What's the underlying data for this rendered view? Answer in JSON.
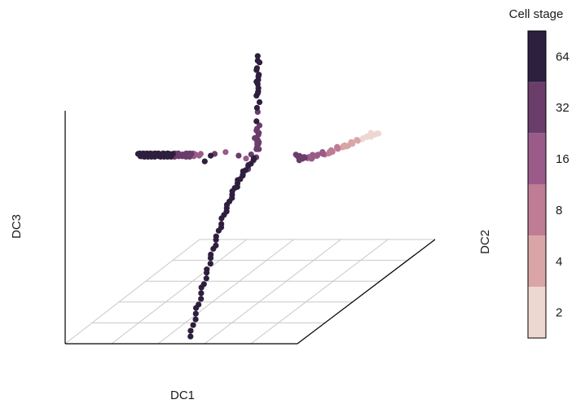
{
  "chart_data": {
    "type": "scatter",
    "projection": "3d",
    "xlabel": "DC1",
    "ylabel": "DC2",
    "zlabel": "DC3",
    "grid": true,
    "legend": {
      "title": "Cell stage",
      "placement": "right",
      "type": "colorbar",
      "ticks": [
        2,
        4,
        8,
        16,
        32,
        64
      ],
      "colors": [
        "#efd7d1",
        "#d9a5a6",
        "#bf7c95",
        "#9a5b8a",
        "#6a3d6b",
        "#2e1f3f"
      ]
    },
    "series": [
      {
        "arm": "stage-axis",
        "cell_stage": [
          2,
          2,
          2,
          2,
          2,
          2,
          2,
          2,
          2,
          2,
          4,
          4,
          4,
          4,
          4,
          4,
          4,
          4,
          4,
          4,
          4,
          4,
          8,
          8,
          8,
          8,
          8,
          8,
          8,
          8,
          8,
          8,
          16,
          16,
          16,
          16,
          16,
          16,
          16,
          16,
          16,
          16,
          16,
          16,
          32,
          32,
          32,
          32,
          32,
          32,
          32,
          32
        ],
        "x": [
          0.98,
          0.95,
          0.92,
          0.97,
          0.9,
          0.88,
          0.94,
          0.86,
          0.84,
          0.91,
          0.82,
          0.8,
          0.78,
          0.76,
          0.79,
          0.74,
          0.72,
          0.75,
          0.7,
          0.68,
          0.73,
          0.71,
          0.66,
          0.64,
          0.62,
          0.6,
          0.63,
          0.58,
          0.56,
          0.59,
          0.61,
          0.57,
          0.54,
          0.52,
          0.5,
          0.48,
          0.51,
          0.46,
          0.44,
          0.47,
          0.42,
          0.4,
          0.45,
          0.43,
          0.38,
          0.36,
          0.34,
          0.37,
          0.33,
          0.35,
          0.31,
          0.32
        ],
        "y": [
          0.22,
          0.24,
          0.23,
          0.26,
          0.21,
          0.25,
          0.2,
          0.22,
          0.24,
          0.19,
          0.21,
          0.23,
          0.2,
          0.22,
          0.18,
          0.21,
          0.19,
          0.23,
          0.2,
          0.22,
          0.17,
          0.24,
          0.19,
          0.21,
          0.18,
          0.2,
          0.23,
          0.19,
          0.17,
          0.21,
          0.16,
          0.22,
          0.18,
          0.2,
          0.17,
          0.19,
          0.22,
          0.16,
          0.18,
          0.2,
          0.17,
          0.19,
          0.15,
          0.21,
          0.17,
          0.18,
          0.16,
          0.2,
          0.19,
          0.15,
          0.17,
          0.18
        ],
        "z": [
          0.63,
          0.62,
          0.63,
          0.62,
          0.62,
          0.61,
          0.62,
          0.61,
          0.6,
          0.62,
          0.6,
          0.6,
          0.59,
          0.59,
          0.6,
          0.58,
          0.58,
          0.59,
          0.58,
          0.57,
          0.59,
          0.57,
          0.57,
          0.57,
          0.56,
          0.56,
          0.57,
          0.55,
          0.55,
          0.56,
          0.56,
          0.55,
          0.55,
          0.55,
          0.55,
          0.54,
          0.55,
          0.54,
          0.53,
          0.54,
          0.54,
          0.53,
          0.54,
          0.54,
          0.54,
          0.53,
          0.54,
          0.53,
          0.54,
          0.53,
          0.55,
          0.54
        ]
      },
      {
        "arm": "left-arm",
        "cell_stage": [
          64,
          64,
          64,
          64,
          64,
          64,
          64,
          64,
          64,
          64,
          64,
          64,
          64,
          64,
          64,
          64,
          64,
          64,
          64,
          64,
          64,
          64,
          64,
          64,
          64,
          64,
          64,
          64,
          64,
          64,
          64,
          64,
          64,
          64,
          64,
          64,
          64,
          64,
          64,
          64,
          32,
          32,
          32,
          32,
          32,
          32,
          32,
          32,
          32,
          32,
          32,
          32,
          32,
          32,
          32,
          32,
          16,
          16,
          16,
          16,
          16,
          64,
          64,
          32,
          16,
          32,
          16,
          32
        ],
        "x": [
          -0.98,
          -0.97,
          -0.96,
          -0.95,
          -0.94,
          -0.93,
          -0.92,
          -0.91,
          -0.9,
          -0.89,
          -0.88,
          -0.87,
          -0.86,
          -0.85,
          -0.84,
          -0.83,
          -0.82,
          -0.81,
          -0.8,
          -0.79,
          -0.96,
          -0.94,
          -0.92,
          -0.9,
          -0.88,
          -0.86,
          -0.84,
          -0.82,
          -0.8,
          -0.78,
          -0.77,
          -0.76,
          -0.75,
          -0.74,
          -0.73,
          -0.72,
          -0.71,
          -0.7,
          -0.69,
          -0.68,
          -0.67,
          -0.66,
          -0.65,
          -0.64,
          -0.63,
          -0.62,
          -0.61,
          -0.6,
          -0.59,
          -0.58,
          -0.57,
          -0.56,
          -0.55,
          -0.54,
          -0.53,
          -0.52,
          -0.51,
          -0.5,
          -0.48,
          -0.46,
          -0.44,
          -0.4,
          -0.36,
          -0.32,
          -0.22,
          -0.12,
          -0.05,
          0.0
        ],
        "y": [
          0.05,
          0.06,
          0.04,
          0.05,
          0.06,
          0.05,
          0.04,
          0.06,
          0.05,
          0.04,
          0.06,
          0.05,
          0.04,
          0.05,
          0.06,
          0.04,
          0.05,
          0.06,
          0.05,
          0.04,
          0.05,
          0.06,
          0.04,
          0.05,
          0.06,
          0.04,
          0.05,
          0.06,
          0.05,
          0.04,
          0.06,
          0.05,
          0.04,
          0.05,
          0.06,
          0.04,
          0.05,
          0.06,
          0.04,
          0.05,
          0.06,
          0.04,
          0.05,
          0.06,
          0.05,
          0.04,
          0.06,
          0.05,
          0.04,
          0.05,
          0.06,
          0.04,
          0.05,
          0.06,
          0.04,
          0.05,
          0.06,
          0.05,
          0.04,
          0.06,
          0.05,
          0.04,
          0.06,
          0.05,
          0.04,
          0.06,
          0.05,
          0.04
        ],
        "z": [
          0.58,
          0.58,
          0.58,
          0.57,
          0.58,
          0.58,
          0.57,
          0.58,
          0.58,
          0.57,
          0.58,
          0.58,
          0.57,
          0.58,
          0.58,
          0.57,
          0.58,
          0.58,
          0.57,
          0.58,
          0.57,
          0.57,
          0.58,
          0.57,
          0.57,
          0.58,
          0.57,
          0.57,
          0.58,
          0.57,
          0.58,
          0.58,
          0.57,
          0.58,
          0.58,
          0.57,
          0.58,
          0.57,
          0.57,
          0.58,
          0.58,
          0.57,
          0.58,
          0.58,
          0.57,
          0.58,
          0.57,
          0.57,
          0.58,
          0.57,
          0.58,
          0.57,
          0.58,
          0.58,
          0.57,
          0.58,
          0.58,
          0.57,
          0.58,
          0.57,
          0.58,
          0.55,
          0.57,
          0.58,
          0.59,
          0.57,
          0.56,
          0.58
        ]
      },
      {
        "arm": "upper-arm",
        "cell_stage": [
          64,
          64,
          64,
          64,
          64,
          64,
          64,
          64,
          64,
          64,
          64,
          64,
          64,
          64,
          64,
          64,
          32,
          64,
          32,
          32,
          32,
          32,
          32,
          32,
          32,
          32,
          32,
          32,
          32,
          32,
          32,
          32
        ],
        "x": [
          0.05,
          0.05,
          0.06,
          0.05,
          0.04,
          0.06,
          0.05,
          0.06,
          0.04,
          0.05,
          0.05,
          0.06,
          0.05,
          0.04,
          0.06,
          0.05,
          0.05,
          0.04,
          0.06,
          0.05,
          0.04,
          0.06,
          0.05,
          0.03,
          0.05,
          0.06,
          0.04,
          0.05,
          0.06,
          0.04,
          0.05,
          0.05
        ],
        "y": [
          0.05,
          0.05,
          0.06,
          0.04,
          0.05,
          0.05,
          0.06,
          0.04,
          0.05,
          0.05,
          0.06,
          0.04,
          0.05,
          0.05,
          0.06,
          0.04,
          0.05,
          0.05,
          0.06,
          0.04,
          0.05,
          0.05,
          0.06,
          0.04,
          0.05,
          0.05,
          0.06,
          0.04,
          0.05,
          0.05,
          0.06,
          0.04
        ],
        "z": [
          1.0,
          0.98,
          0.97,
          0.95,
          0.94,
          0.92,
          0.91,
          0.9,
          0.89,
          0.88,
          0.86,
          0.85,
          0.84,
          0.83,
          0.8,
          0.78,
          0.76,
          0.72,
          0.7,
          0.69,
          0.68,
          0.67,
          0.66,
          0.65,
          0.64,
          0.63,
          0.62,
          0.61,
          0.6,
          0.6,
          0.62,
          0.64
        ]
      },
      {
        "arm": "lower-arm",
        "cell_stage": [
          64,
          64,
          64,
          64,
          64,
          64,
          64,
          64,
          64,
          64,
          64,
          64,
          64,
          64,
          64,
          64,
          64,
          64,
          64,
          64,
          64,
          64,
          64,
          64,
          64,
          64,
          64,
          64,
          64,
          64,
          64,
          64,
          64,
          64,
          64,
          64,
          64,
          64,
          64,
          64,
          64,
          64,
          32,
          64,
          32,
          64,
          32,
          64,
          64,
          32
        ],
        "x": [
          0.05,
          0.04,
          0.05,
          0.06,
          0.05,
          0.04,
          0.05,
          0.06,
          0.05,
          0.04,
          0.05,
          0.06,
          0.05,
          0.04,
          0.06,
          0.05,
          0.04,
          0.05,
          0.06,
          0.05,
          0.04,
          0.05,
          0.06,
          0.05,
          0.04,
          0.05,
          0.06,
          0.05,
          0.04,
          0.05,
          0.06,
          0.05,
          0.04,
          0.05,
          0.06,
          0.05,
          0.04,
          0.05,
          0.06,
          0.05,
          0.04,
          0.05,
          0.06,
          0.05,
          0.04,
          0.05,
          0.06,
          0.05,
          0.04,
          0.05
        ],
        "y": [
          -0.95,
          -0.93,
          -0.91,
          -0.89,
          -0.87,
          -0.85,
          -0.83,
          -0.81,
          -0.79,
          -0.77,
          -0.75,
          -0.73,
          -0.71,
          -0.69,
          -0.67,
          -0.65,
          -0.63,
          -0.61,
          -0.59,
          -0.57,
          -0.55,
          -0.53,
          -0.51,
          -0.49,
          -0.47,
          -0.45,
          -0.43,
          -0.41,
          -0.39,
          -0.37,
          -0.35,
          -0.33,
          -0.31,
          -0.29,
          -0.27,
          -0.25,
          -0.23,
          -0.21,
          -0.19,
          -0.17,
          -0.15,
          -0.13,
          -0.11,
          -0.09,
          -0.07,
          -0.05,
          -0.03,
          -0.01,
          0.01,
          0.03
        ],
        "z": [
          0.02,
          0.04,
          0.06,
          0.08,
          0.1,
          0.12,
          0.13,
          0.15,
          0.17,
          0.19,
          0.2,
          0.22,
          0.24,
          0.25,
          0.27,
          0.29,
          0.3,
          0.32,
          0.33,
          0.35,
          0.36,
          0.38,
          0.39,
          0.4,
          0.42,
          0.43,
          0.44,
          0.45,
          0.46,
          0.47,
          0.48,
          0.49,
          0.5,
          0.51,
          0.51,
          0.52,
          0.53,
          0.53,
          0.54,
          0.54,
          0.55,
          0.55,
          0.55,
          0.56,
          0.56,
          0.56,
          0.57,
          0.57,
          0.57,
          0.57
        ]
      }
    ]
  }
}
